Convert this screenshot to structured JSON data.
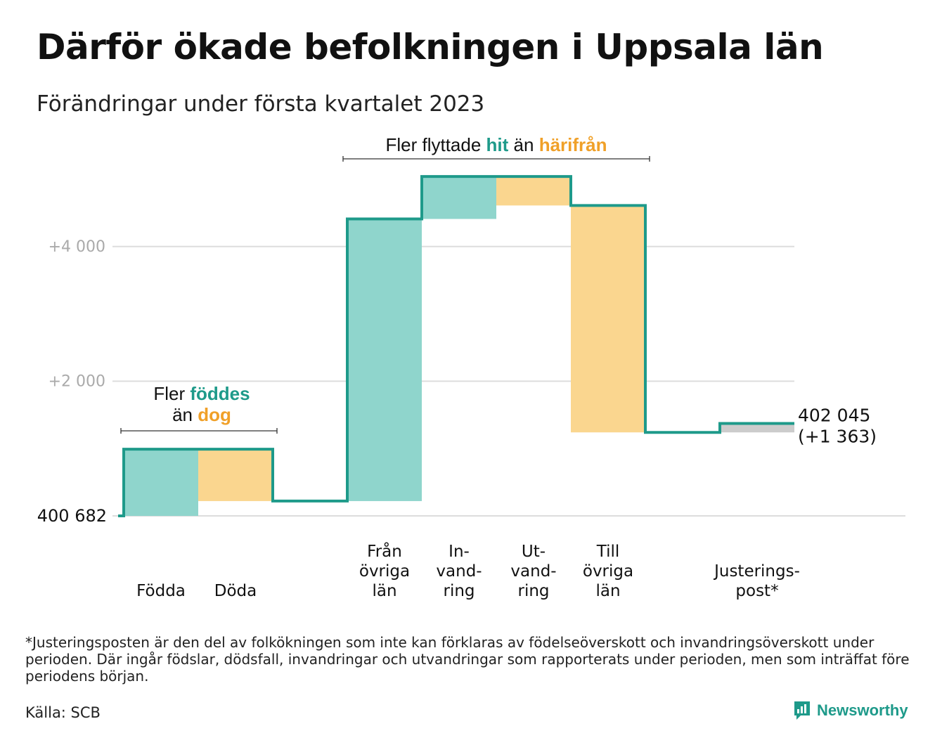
{
  "title": "Därför ökade befolkningen i Uppsala län",
  "subtitle": "Förändringar under första kvartalet 2023",
  "colors": {
    "increase": "#8fd5cc",
    "decrease": "#fad68f",
    "adjustment": "#cccccc",
    "line": "#1e9a8a",
    "hit": "#1e9a8a",
    "harifran": "#f0a028",
    "grid": "#dddddd",
    "tick": "#aaaaaa"
  },
  "chart_data": {
    "type": "waterfall",
    "start": {
      "value": 0,
      "label": "400 682"
    },
    "end": {
      "value": 1363,
      "label_line1": "402 045",
      "label_line2": "(+1 363)"
    },
    "ylim": [
      0,
      5000
    ],
    "yticks": [
      {
        "value": 2000,
        "label": "+2 000"
      },
      {
        "value": 4000,
        "label": "+4 000"
      }
    ],
    "grid": true,
    "steps": [
      {
        "category_lines": [
          "Födda"
        ],
        "delta": 990,
        "kind": "increase"
      },
      {
        "category_lines": [
          "Döda"
        ],
        "delta": -770,
        "kind": "decrease"
      },
      {
        "category_lines": [],
        "delta": 0,
        "kind": "gap"
      },
      {
        "category_lines": [
          "Från",
          "övriga",
          "län"
        ],
        "delta": 4190,
        "kind": "increase"
      },
      {
        "category_lines": [
          "In-",
          "vand-",
          "ring"
        ],
        "delta": 630,
        "kind": "increase"
      },
      {
        "category_lines": [
          "Ut-",
          "vand-",
          "ring"
        ],
        "delta": -430,
        "kind": "decrease"
      },
      {
        "category_lines": [
          "Till",
          "övriga",
          "län"
        ],
        "delta": -3370,
        "kind": "decrease"
      },
      {
        "category_lines": [],
        "delta": 0,
        "kind": "gap"
      },
      {
        "category_lines": [
          "Justerings-",
          "post*"
        ],
        "delta": 133,
        "kind": "adjustment"
      }
    ],
    "annotations": [
      {
        "segments": [
          {
            "text": "Fler ",
            "style": "plain"
          },
          {
            "text": "föddes",
            "style": "hit"
          }
        ],
        "segments2": [
          {
            "text": "än ",
            "style": "plain"
          },
          {
            "text": "dog",
            "style": "harifran"
          }
        ],
        "span": [
          0,
          1
        ]
      },
      {
        "segments": [
          {
            "text": "Fler flyttade ",
            "style": "plain"
          },
          {
            "text": "hit",
            "style": "hit"
          },
          {
            "text": " än ",
            "style": "plain"
          },
          {
            "text": "härifrån",
            "style": "harifran"
          }
        ],
        "segments2": [],
        "span": [
          3,
          6
        ]
      }
    ]
  },
  "footnote": "*Justeringsposten är den del av folkökningen som inte kan förklaras av födelseöverskott och invandringsöverskott under perioden. Där ingår födslar, dödsfall, invandringar och utvandringar som rapporterats under perioden, men som inträffat före periodens början.",
  "source": "Källa: SCB",
  "brand": {
    "name": "Newsworthy",
    "icon": "newsworthy-logo-icon"
  }
}
